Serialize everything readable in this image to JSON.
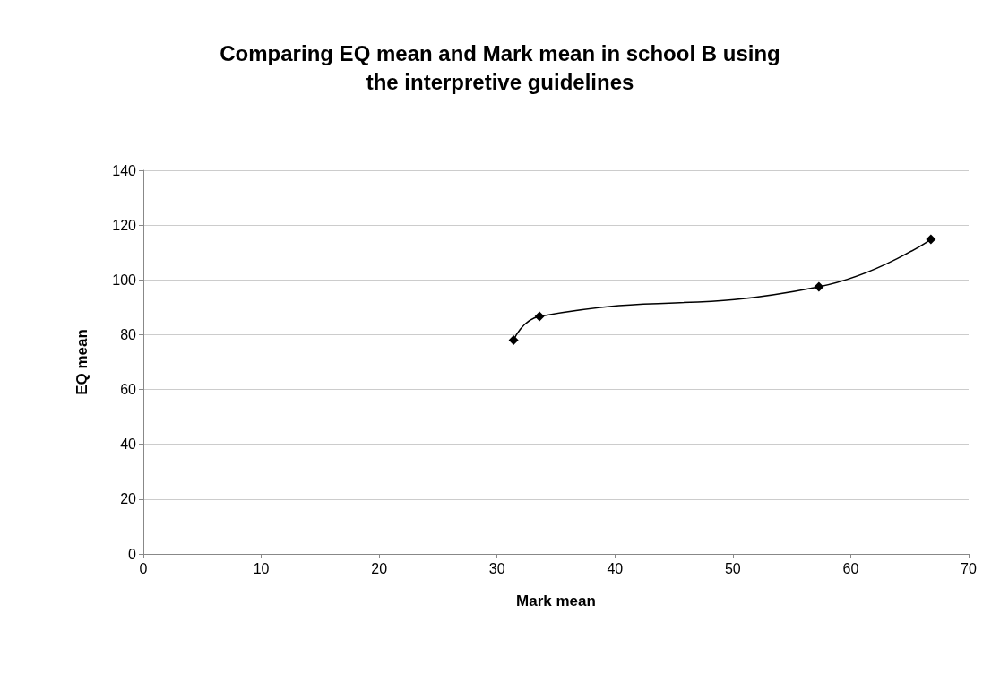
{
  "chart_data": {
    "type": "line",
    "title": "Comparing EQ mean and Mark mean in school B using\nthe interpretive guidelines",
    "xlabel": "Mark mean",
    "ylabel": "EQ mean",
    "x": [
      31.4,
      33.6,
      57.3,
      66.8
    ],
    "series": [
      {
        "color": "#000000",
        "values": [
          78,
          86.7,
          97.5,
          114.8
        ]
      }
    ],
    "xlim": [
      0,
      70
    ],
    "xticks": [
      0,
      10,
      20,
      30,
      40,
      50,
      60,
      70
    ],
    "ylim": [
      0,
      140
    ],
    "yticks": [
      0,
      20,
      40,
      60,
      80,
      100,
      120,
      140
    ],
    "grid": "y",
    "marker": "diamond",
    "line_style": "solid"
  }
}
